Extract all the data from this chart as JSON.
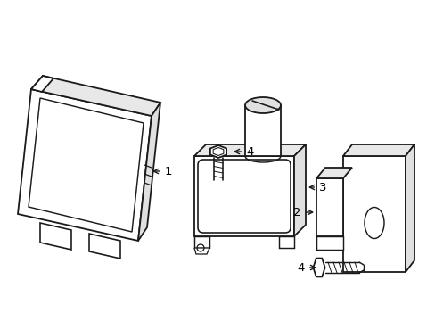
{
  "bg_color": "#ffffff",
  "line_color": "#1a1a1a",
  "line_width": 1.3,
  "fig_width": 4.89,
  "fig_height": 3.6,
  "dpi": 100
}
